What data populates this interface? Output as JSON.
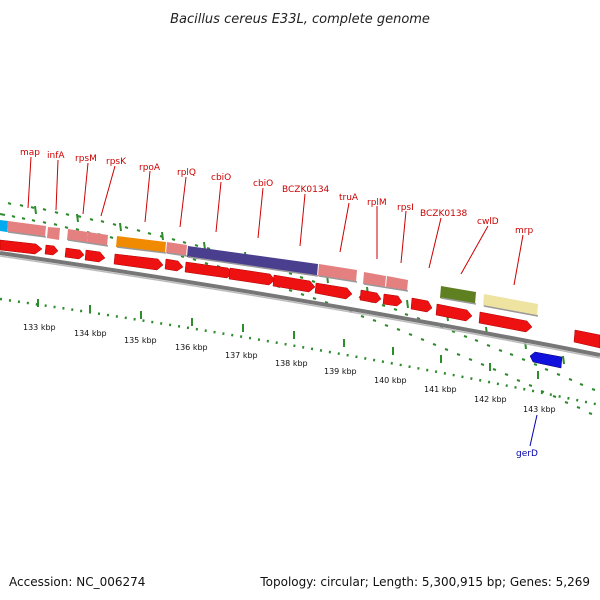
{
  "title": "Bacillus cereus E33L, complete genome",
  "footer": {
    "accession": "Accession: NC_006274",
    "topology": "Topology: circular; Length: 5,300,915 bp; Genes: 5,269"
  },
  "colors": {
    "label_upper": "#cc0000",
    "label_lower": "#0000aa",
    "tick": "#2e8b2e",
    "backbone": "#888888",
    "cds_red": "#ee1111",
    "cds_blue": "#1111dd",
    "gene_pink": "#e58080",
    "gene_orange": "#f08a00",
    "gene_purple": "#4a3f8f",
    "gene_olive": "#5f8020",
    "gene_khaki": "#eee3a0",
    "gene_cyan": "#00aaee"
  },
  "gene_labels_upper": [
    "map",
    "infA",
    "rpsM",
    "rpsK",
    "rpoA",
    "rplQ",
    "cbiO",
    "cbiO",
    "BCZK0134",
    "truA",
    "rplM",
    "rpsI",
    "BCZK0138",
    "cwlD",
    "mrp"
  ],
  "gene_labels_lower": [
    "gerD"
  ],
  "scale_labels": [
    "133 kbp",
    "134 kbp",
    "135 kbp",
    "136 kbp",
    "137 kbp",
    "138 kbp",
    "139 kbp",
    "140 kbp",
    "141 kbp",
    "142 kbp",
    "143 kbp"
  ]
}
